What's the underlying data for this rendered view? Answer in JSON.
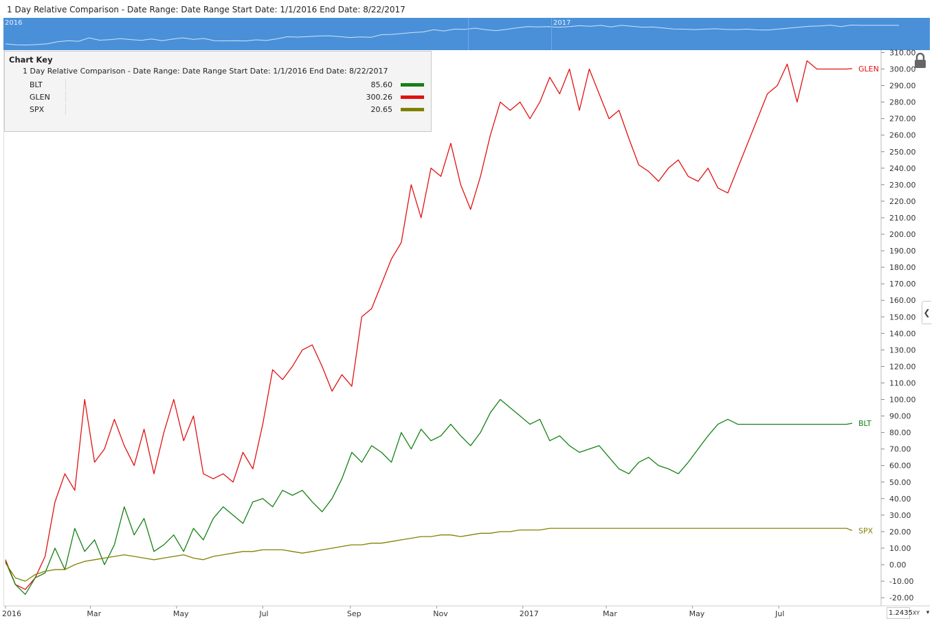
{
  "header": {
    "title": "1 Day Relative Comparison - Date Range: Date Range  Start Date: 1/1/2016  End Date: 8/22/2017"
  },
  "navigator": {
    "years": [
      "2016",
      "2017"
    ]
  },
  "chart_key": {
    "heading": "Chart Key",
    "description": "1 Day Relative Comparison - Date Range: Date Range  Start Date: 1/1/2016  End Date: 8/22/2017",
    "items": [
      {
        "name": "BLT",
        "value": "85.60",
        "color": "#148014"
      },
      {
        "name": "GLEN",
        "value": "300.26",
        "color": "#e01010"
      },
      {
        "name": "SPX",
        "value": "20.65",
        "color": "#808000"
      }
    ]
  },
  "controls": {
    "scale_value": "1.2435",
    "xy_label": "XY",
    "lock_icon": "lock-icon",
    "collapse_icon": "chevron-left-icon"
  },
  "chart_data": {
    "type": "line",
    "title": "1 Day Relative Comparison",
    "y_axis_position": "right",
    "ylim": [
      -20,
      310
    ],
    "y_ticks": [
      "310.00",
      "300.00",
      "290.00",
      "280.00",
      "270.00",
      "260.00",
      "250.00",
      "240.00",
      "230.00",
      "220.00",
      "210.00",
      "200.00",
      "190.00",
      "180.00",
      "170.00",
      "160.00",
      "150.00",
      "140.00",
      "130.00",
      "120.00",
      "110.00",
      "100.00",
      "90.00",
      "80.00",
      "70.00",
      "60.00",
      "50.00",
      "40.00",
      "30.00",
      "20.00",
      "10.00",
      "0.00",
      "-10.00",
      "-20.00"
    ],
    "x_ticks": [
      "2016",
      "Mar",
      "May",
      "Jul",
      "Sep",
      "Nov",
      "2017",
      "Mar",
      "May",
      "Jul"
    ],
    "x_tick_dates": [
      "2016-01-01",
      "2016-03-01",
      "2016-05-01",
      "2016-07-01",
      "2016-09-01",
      "2016-11-01",
      "2017-01-01",
      "2017-03-01",
      "2017-05-01",
      "2017-07-01"
    ],
    "x_range": [
      "2016-01-01",
      "2017-08-22"
    ],
    "grid": false,
    "legend": "end-of-line labels and chart key top-left",
    "x": [
      "2016-01-01",
      "2016-01-08",
      "2016-01-15",
      "2016-01-22",
      "2016-01-29",
      "2016-02-05",
      "2016-02-12",
      "2016-02-19",
      "2016-02-26",
      "2016-03-04",
      "2016-03-11",
      "2016-03-18",
      "2016-03-25",
      "2016-04-01",
      "2016-04-08",
      "2016-04-15",
      "2016-04-22",
      "2016-04-29",
      "2016-05-06",
      "2016-05-13",
      "2016-05-20",
      "2016-05-27",
      "2016-06-03",
      "2016-06-10",
      "2016-06-17",
      "2016-06-24",
      "2016-07-01",
      "2016-07-08",
      "2016-07-15",
      "2016-07-22",
      "2016-07-29",
      "2016-08-05",
      "2016-08-12",
      "2016-08-19",
      "2016-08-26",
      "2016-09-02",
      "2016-09-09",
      "2016-09-16",
      "2016-09-23",
      "2016-09-30",
      "2016-10-07",
      "2016-10-14",
      "2016-10-21",
      "2016-10-28",
      "2016-11-04",
      "2016-11-11",
      "2016-11-18",
      "2016-11-25",
      "2016-12-02",
      "2016-12-09",
      "2016-12-16",
      "2016-12-23",
      "2016-12-30",
      "2017-01-06",
      "2017-01-13",
      "2017-01-20",
      "2017-01-27",
      "2017-02-03",
      "2017-02-10",
      "2017-02-17",
      "2017-02-24",
      "2017-03-03",
      "2017-03-10",
      "2017-03-17",
      "2017-03-24",
      "2017-03-31",
      "2017-04-07",
      "2017-04-14",
      "2017-04-21",
      "2017-04-28",
      "2017-05-05",
      "2017-05-12",
      "2017-05-19",
      "2017-05-26",
      "2017-06-02",
      "2017-06-09",
      "2017-06-16",
      "2017-06-23",
      "2017-06-30",
      "2017-07-07",
      "2017-07-14",
      "2017-07-21",
      "2017-07-28",
      "2017-08-04",
      "2017-08-11",
      "2017-08-18",
      "2017-08-22"
    ],
    "series": [
      {
        "name": "GLEN",
        "color": "#e01010",
        "values": [
          3,
          -12,
          -15,
          -8,
          5,
          38,
          55,
          45,
          100,
          62,
          70,
          88,
          72,
          60,
          82,
          55,
          80,
          100,
          75,
          90,
          55,
          52,
          55,
          50,
          68,
          58,
          85,
          118,
          112,
          120,
          130,
          133,
          120,
          105,
          115,
          108,
          150,
          155,
          170,
          185,
          195,
          230,
          210,
          240,
          235,
          255,
          230,
          215,
          235,
          260,
          280,
          275,
          280,
          270,
          280,
          295,
          285,
          300,
          275,
          300,
          285,
          270,
          275,
          258,
          242,
          238,
          232,
          240,
          245,
          235,
          232,
          240,
          228,
          225,
          240,
          255,
          270,
          285,
          290,
          303,
          280,
          305,
          300,
          300,
          300,
          300,
          300.26
        ]
      },
      {
        "name": "BLT",
        "color": "#148014",
        "values": [
          2,
          -12,
          -18,
          -8,
          -5,
          10,
          -3,
          22,
          8,
          15,
          0,
          12,
          35,
          18,
          28,
          8,
          12,
          18,
          8,
          22,
          15,
          28,
          35,
          30,
          25,
          38,
          40,
          35,
          45,
          42,
          45,
          38,
          32,
          40,
          52,
          68,
          62,
          72,
          68,
          62,
          80,
          70,
          82,
          75,
          78,
          85,
          78,
          72,
          80,
          92,
          100,
          95,
          90,
          85,
          88,
          75,
          78,
          72,
          68,
          70,
          72,
          65,
          58,
          55,
          62,
          65,
          60,
          58,
          55,
          62,
          70,
          78,
          85,
          88,
          85,
          85,
          85,
          85,
          85,
          85,
          85,
          85,
          85,
          85,
          85,
          85,
          85.6
        ]
      },
      {
        "name": "SPX",
        "color": "#808000",
        "values": [
          1,
          -8,
          -10,
          -6,
          -4,
          -3,
          -3,
          0,
          2,
          3,
          4,
          5,
          6,
          5,
          4,
          3,
          4,
          5,
          6,
          4,
          3,
          5,
          6,
          7,
          8,
          8,
          9,
          9,
          9,
          8,
          7,
          8,
          9,
          10,
          11,
          12,
          12,
          13,
          13,
          14,
          15,
          16,
          17,
          17,
          18,
          18,
          17,
          18,
          19,
          19,
          20,
          20,
          21,
          21,
          21,
          22,
          22,
          22,
          22,
          22,
          22,
          22,
          22,
          22,
          22,
          22,
          22,
          22,
          22,
          22,
          22,
          22,
          22,
          22,
          22,
          22,
          22,
          22,
          22,
          22,
          22,
          22,
          22,
          22,
          22,
          22,
          20.65
        ]
      }
    ]
  }
}
